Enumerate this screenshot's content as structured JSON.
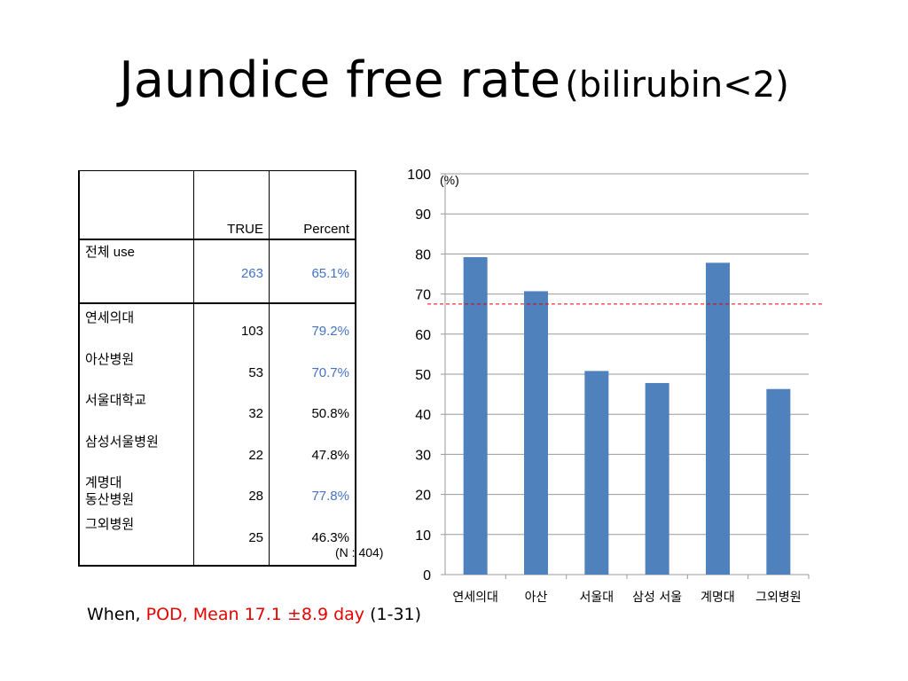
{
  "title": {
    "main": "Jaundice free rate",
    "sub": "(bilirubin<2)"
  },
  "table": {
    "headers": [
      "",
      "TRUE",
      "Percent"
    ],
    "overall": {
      "label": "전체 use",
      "count": "263",
      "percent": "65.1%"
    },
    "rows": [
      {
        "label": "연세의대",
        "count": "103",
        "percent": "79.2%",
        "highlight": true
      },
      {
        "label": "아산병원",
        "count": "53",
        "percent": "70.7%",
        "highlight": true
      },
      {
        "label": "서울대학교",
        "count": "32",
        "percent": "50.8%",
        "highlight": false
      },
      {
        "label": "삼성서울병원",
        "count": "22",
        "percent": "47.8%",
        "highlight": false
      },
      {
        "label": "계명대\n동산병원",
        "count": "28",
        "percent": "77.8%",
        "highlight": true
      },
      {
        "label": "그외병원",
        "count": "25",
        "percent": "46.3%",
        "highlight": false
      }
    ],
    "note": "(N : 404)"
  },
  "chart_data": {
    "type": "bar",
    "categories": [
      "연세의대",
      "아산",
      "서울대",
      "삼성 서울",
      "계명대",
      "그외병원"
    ],
    "values": [
      79.2,
      70.7,
      50.8,
      47.8,
      77.8,
      46.3
    ],
    "unit_label": "(%)",
    "ylim": [
      0,
      100
    ],
    "yticks": [
      0,
      10,
      20,
      30,
      40,
      50,
      60,
      70,
      80,
      90,
      100
    ],
    "grid": true,
    "reference_line": {
      "value": 67.5,
      "style": "dashed",
      "color": "#e60000"
    },
    "bar_color": "#4f81bd"
  },
  "footnote": {
    "prefix": "When, ",
    "highlight": "POD, Mean 17.1 ±8.9 day",
    "suffix": " (1-31)"
  }
}
